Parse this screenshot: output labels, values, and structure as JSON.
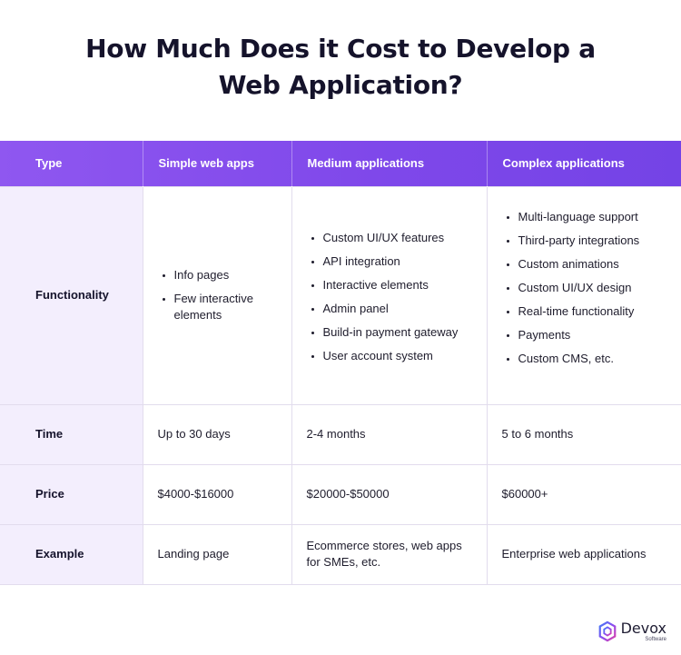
{
  "title": {
    "line1": "How Much Does it Cost to Develop a",
    "line2": "Web Application?"
  },
  "table": {
    "headers": [
      "Type",
      "Simple web apps",
      "Medium applications",
      "Complex applications"
    ],
    "rows": {
      "functionality": {
        "label": "Functionality",
        "simple": [
          "Info pages",
          "Few interactive elements"
        ],
        "medium": [
          "Custom UI/UX features",
          "API integration",
          "Interactive elements",
          "Admin panel",
          "Build-in payment gateway",
          "User account system"
        ],
        "complex": [
          "Multi-language support",
          "Third-party integrations",
          "Custom animations",
          "Custom UI/UX design",
          "Real-time functionality",
          "Payments",
          "Custom CMS, etc."
        ]
      },
      "time": {
        "label": "Time",
        "simple": "Up to 30 days",
        "medium": "2-4 months",
        "complex": "5 to 6 months"
      },
      "price": {
        "label": "Price",
        "simple": "$4000-$16000",
        "medium": "$20000-$50000",
        "complex": "$60000+"
      },
      "example": {
        "label": "Example",
        "simple": "Landing page",
        "medium": "Ecommerce stores, web apps for SMEs, etc.",
        "complex": "Enterprise web applications"
      }
    }
  },
  "logo": {
    "name": "Devox",
    "sub": "Software",
    "icon": "devox-logo-icon"
  },
  "colors": {
    "header_gradient_start": "#8f57f0",
    "header_gradient_end": "#7443e6",
    "row_header_bg": "#f3eefd"
  }
}
